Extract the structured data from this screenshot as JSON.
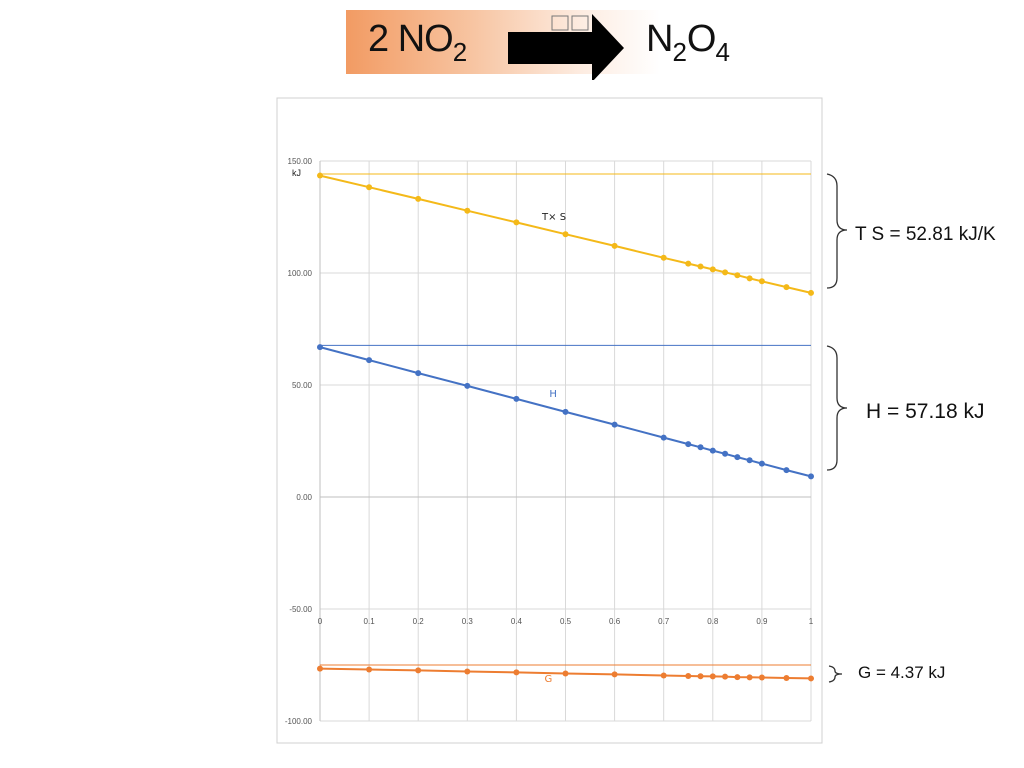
{
  "reaction": {
    "reactant": {
      "coefficient": "2",
      "species": "NO",
      "subscript": "2"
    },
    "product": {
      "el1": "N",
      "sub1": "2",
      "el2": "O",
      "sub2": "4"
    }
  },
  "annotations": {
    "ts": "T  S =   52.81 kJ/K",
    "h": "H =   57.18 kJ",
    "g": "G =   4.37 kJ"
  },
  "colors": {
    "ts_series": "#f4b919",
    "h_series": "#4472c4",
    "g_series": "#ed7d31",
    "gridline": "#d9d9d9",
    "frame": "#d0d0d0",
    "banner_start": "#f29b63"
  },
  "chart_data": {
    "type": "line",
    "unit_label": "kJ",
    "x_ticks": [
      "0",
      "0.1",
      "0.2",
      "0.3",
      "0.4",
      "0.5",
      "0.6",
      "0.7",
      "0.8",
      "0.9",
      "1"
    ],
    "y_ticks": [
      "150.00",
      "100.00",
      "50.00",
      "0.00",
      "-50.00",
      "-100.00"
    ],
    "xlim": [
      0,
      1
    ],
    "ylim": [
      -100,
      150
    ],
    "grid": true,
    "series": [
      {
        "name": "T× S",
        "color": "#f4b919",
        "reference": 144.2,
        "points": [
          [
            0,
            143.5
          ],
          [
            0.1,
            138.3
          ],
          [
            0.2,
            133.1
          ],
          [
            0.3,
            127.8
          ],
          [
            0.4,
            122.6
          ],
          [
            0.5,
            117.3
          ],
          [
            0.6,
            112.1
          ],
          [
            0.7,
            106.8
          ],
          [
            0.75,
            104.2
          ],
          [
            0.775,
            102.9
          ],
          [
            0.8,
            101.6
          ],
          [
            0.825,
            100.3
          ],
          [
            0.85,
            99.0
          ],
          [
            0.875,
            97.6
          ],
          [
            0.9,
            96.3
          ],
          [
            0.95,
            93.7
          ],
          [
            1,
            91.1
          ]
        ]
      },
      {
        "name": "H",
        "color": "#4472c4",
        "reference": 67.7,
        "points": [
          [
            0,
            66.9
          ],
          [
            0.1,
            61.1
          ],
          [
            0.2,
            55.3
          ],
          [
            0.3,
            49.6
          ],
          [
            0.4,
            43.8
          ],
          [
            0.5,
            38.0
          ],
          [
            0.6,
            32.3
          ],
          [
            0.7,
            26.5
          ],
          [
            0.75,
            23.6
          ],
          [
            0.775,
            22.2
          ],
          [
            0.8,
            20.7
          ],
          [
            0.825,
            19.3
          ],
          [
            0.85,
            17.8
          ],
          [
            0.875,
            16.4
          ],
          [
            0.9,
            14.9
          ],
          [
            0.95,
            12.0
          ],
          [
            1,
            9.2
          ]
        ]
      },
      {
        "name": "G",
        "color": "#ed7d31",
        "reference": -75.0,
        "points": [
          [
            0,
            -76.6
          ],
          [
            0.1,
            -77.0
          ],
          [
            0.2,
            -77.4
          ],
          [
            0.3,
            -77.9
          ],
          [
            0.4,
            -78.3
          ],
          [
            0.5,
            -78.8
          ],
          [
            0.6,
            -79.2
          ],
          [
            0.7,
            -79.7
          ],
          [
            0.75,
            -79.9
          ],
          [
            0.775,
            -80.0
          ],
          [
            0.8,
            -80.1
          ],
          [
            0.825,
            -80.2
          ],
          [
            0.85,
            -80.4
          ],
          [
            0.875,
            -80.5
          ],
          [
            0.9,
            -80.6
          ],
          [
            0.95,
            -80.8
          ],
          [
            1,
            -81.0
          ]
        ]
      }
    ]
  }
}
